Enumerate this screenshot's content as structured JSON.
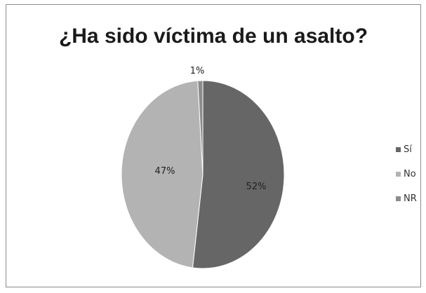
{
  "chart_data": {
    "type": "pie",
    "title": "¿Ha sido víctima de un asalto?",
    "categories": [
      "Sí",
      "No",
      "NR"
    ],
    "values": [
      52,
      47,
      1
    ],
    "data_labels": [
      "52%",
      "47%",
      "1%"
    ],
    "colors": [
      "#666666",
      "#b3b3b3",
      "#8c8c8c"
    ],
    "legend": "right"
  }
}
